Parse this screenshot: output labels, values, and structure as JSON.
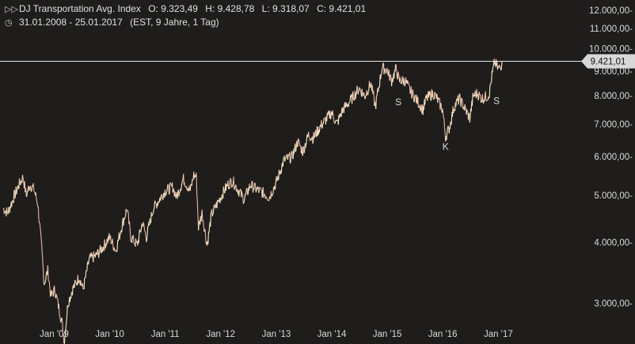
{
  "header": {
    "title": "DJ Transportation Avg. Index",
    "open": "O: 9.323,49",
    "high": "H: 9.428,78",
    "low": "L: 9.318,07",
    "close": "C: 9.421,01",
    "range": "31.01.2008 - 25.01.2017",
    "meta": "(EST, 9 Jahre, 1 Tag)",
    "icons": [
      "candles-icon",
      "clock-icon"
    ]
  },
  "colors": {
    "background": "#1f1d1b",
    "line_up": "#f4edc4",
    "line_down": "#e8b3a8",
    "grid": "#2a2826",
    "text": "#d9d9d9",
    "price_line": "#e6e6e6",
    "price_badge": "#d8d8d8"
  },
  "chart_data": {
    "type": "line",
    "title": "",
    "xlabel": "",
    "ylabel": "",
    "scale": "log",
    "ylim": [
      2500,
      12500
    ],
    "xlim": [
      "2008-01-31",
      "2017-01-25"
    ],
    "x_ticks": [
      {
        "label": "Jan '09",
        "date": "2009-01-01"
      },
      {
        "label": "Jan '10",
        "date": "2010-01-01"
      },
      {
        "label": "Jan '11",
        "date": "2011-01-01"
      },
      {
        "label": "Jan '12",
        "date": "2012-01-01"
      },
      {
        "label": "Jan '13",
        "date": "2013-01-01"
      },
      {
        "label": "Jan '14",
        "date": "2014-01-01"
      },
      {
        "label": "Jan '15",
        "date": "2015-01-01"
      },
      {
        "label": "Jan '16",
        "date": "2016-01-01"
      },
      {
        "label": "Jan '17",
        "date": "2017-01-01"
      }
    ],
    "y_ticks": [
      {
        "label": "3.000,00-",
        "value": 3000
      },
      {
        "label": "4.000,00-",
        "value": 4000
      },
      {
        "label": "5.000,00-",
        "value": 5000
      },
      {
        "label": "6.000,00-",
        "value": 6000
      },
      {
        "label": "7.000,00-",
        "value": 7000
      },
      {
        "label": "8.000,00-",
        "value": 8000
      },
      {
        "label": "9.000,00-",
        "value": 9000
      },
      {
        "label": "10.000,00-",
        "value": 10000
      },
      {
        "label": "11.000,00-",
        "value": 11000
      },
      {
        "label": "12.000,00-",
        "value": 12000
      }
    ],
    "grid": false,
    "legend": "none",
    "last_price": {
      "label": "9.421,01",
      "value": 9421.01
    },
    "annotations": [
      {
        "text": "S",
        "date": "2015-03-15",
        "value": 7650
      },
      {
        "text": "K",
        "date": "2016-01-20",
        "value": 6200
      },
      {
        "text": "S",
        "date": "2016-12-20",
        "value": 7700
      }
    ],
    "series": [
      {
        "points": [
          [
            "2008-01-31",
            4700
          ],
          [
            "2008-03-01",
            4600
          ],
          [
            "2008-04-15",
            5000
          ],
          [
            "2008-05-20",
            5300
          ],
          [
            "2008-06-10",
            5450
          ],
          [
            "2008-07-01",
            5000
          ],
          [
            "2008-07-25",
            5250
          ],
          [
            "2008-08-20",
            5150
          ],
          [
            "2008-09-15",
            4800
          ],
          [
            "2008-10-10",
            3900
          ],
          [
            "2008-10-27",
            3300
          ],
          [
            "2008-11-20",
            3500
          ],
          [
            "2008-12-10",
            3100
          ],
          [
            "2009-01-05",
            3200
          ],
          [
            "2009-01-25",
            3000
          ],
          [
            "2009-02-20",
            2750
          ],
          [
            "2009-03-09",
            2500
          ],
          [
            "2009-04-01",
            3000
          ],
          [
            "2009-05-01",
            3200
          ],
          [
            "2009-06-15",
            3400
          ],
          [
            "2009-07-10",
            3200
          ],
          [
            "2009-08-20",
            3700
          ],
          [
            "2009-10-01",
            3750
          ],
          [
            "2009-11-15",
            3900
          ],
          [
            "2009-12-31",
            4100
          ],
          [
            "2010-02-10",
            3850
          ],
          [
            "2010-03-20",
            4300
          ],
          [
            "2010-04-25",
            4700
          ],
          [
            "2010-05-20",
            4100
          ],
          [
            "2010-07-01",
            3950
          ],
          [
            "2010-08-05",
            4400
          ],
          [
            "2010-08-30",
            4100
          ],
          [
            "2010-10-15",
            4700
          ],
          [
            "2010-12-31",
            5100
          ],
          [
            "2011-02-20",
            5200
          ],
          [
            "2011-03-16",
            4950
          ],
          [
            "2011-05-01",
            5400
          ],
          [
            "2011-06-15",
            5100
          ],
          [
            "2011-07-08",
            5500
          ],
          [
            "2011-07-25",
            5450
          ],
          [
            "2011-08-08",
            4300
          ],
          [
            "2011-09-01",
            4600
          ],
          [
            "2011-10-04",
            3950
          ],
          [
            "2011-11-01",
            4550
          ],
          [
            "2011-12-31",
            4950
          ],
          [
            "2012-02-15",
            5250
          ],
          [
            "2012-03-20",
            5350
          ],
          [
            "2012-04-30",
            5100
          ],
          [
            "2012-06-04",
            4900
          ],
          [
            "2012-07-15",
            5250
          ],
          [
            "2012-08-20",
            5150
          ],
          [
            "2012-10-10",
            5050
          ],
          [
            "2012-11-15",
            4950
          ],
          [
            "2012-12-31",
            5300
          ],
          [
            "2013-02-20",
            5900
          ],
          [
            "2013-04-15",
            6000
          ],
          [
            "2013-05-22",
            6450
          ],
          [
            "2013-06-24",
            6150
          ],
          [
            "2013-08-01",
            6650
          ],
          [
            "2013-09-01",
            6550
          ],
          [
            "2013-10-15",
            6900
          ],
          [
            "2013-12-31",
            7400
          ],
          [
            "2014-02-03",
            7000
          ],
          [
            "2014-03-15",
            7500
          ],
          [
            "2014-05-01",
            7800
          ],
          [
            "2014-06-30",
            8300
          ],
          [
            "2014-08-07",
            8000
          ],
          [
            "2014-09-15",
            8500
          ],
          [
            "2014-10-15",
            7600
          ],
          [
            "2014-11-28",
            9150
          ],
          [
            "2014-12-31",
            9050
          ],
          [
            "2015-01-30",
            8600
          ],
          [
            "2015-02-28",
            9100
          ],
          [
            "2015-03-20",
            8600
          ],
          [
            "2015-04-30",
            8600
          ],
          [
            "2015-06-01",
            8200
          ],
          [
            "2015-07-08",
            7900
          ],
          [
            "2015-08-24",
            7500
          ],
          [
            "2015-09-15",
            7900
          ],
          [
            "2015-10-30",
            8100
          ],
          [
            "2015-11-20",
            7950
          ],
          [
            "2015-12-31",
            7500
          ],
          [
            "2016-01-20",
            6600
          ],
          [
            "2016-02-15",
            6900
          ],
          [
            "2016-03-15",
            7600
          ],
          [
            "2016-04-20",
            7900
          ],
          [
            "2016-05-20",
            7600
          ],
          [
            "2016-06-27",
            7200
          ],
          [
            "2016-07-20",
            8000
          ],
          [
            "2016-08-15",
            8100
          ],
          [
            "2016-09-15",
            7900
          ],
          [
            "2016-10-25",
            8000
          ],
          [
            "2016-11-04",
            8150
          ],
          [
            "2016-11-20",
            8800
          ],
          [
            "2016-12-08",
            9400
          ],
          [
            "2016-12-30",
            9100
          ],
          [
            "2017-01-15",
            9150
          ],
          [
            "2017-01-25",
            9421
          ]
        ]
      }
    ]
  }
}
